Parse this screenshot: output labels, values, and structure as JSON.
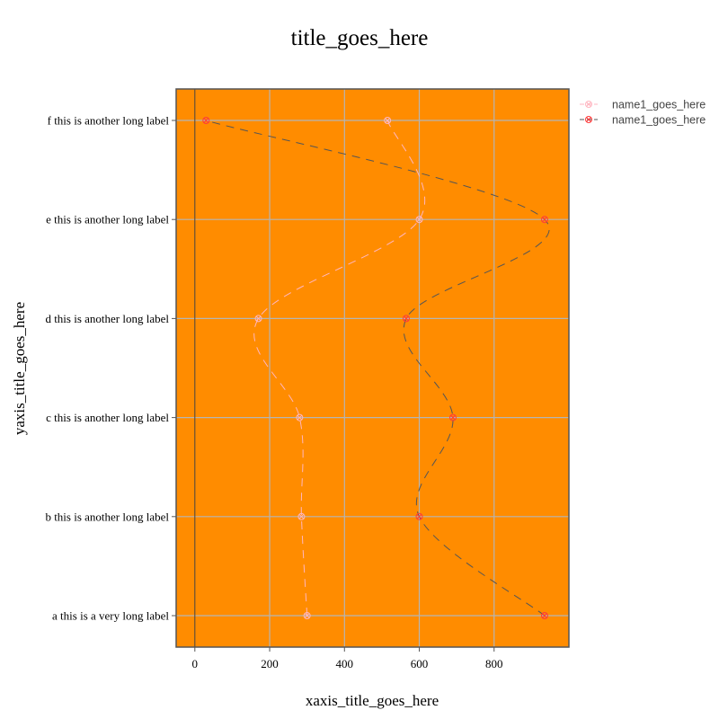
{
  "chart_data": {
    "type": "line",
    "title": "title_goes_here",
    "xlabel": "xaxis_title_goes_here",
    "ylabel": "yaxis_title_goes_here",
    "categories": [
      "a this is a very long label",
      "b this is another long label",
      "c this is another long label",
      "d this is another long label",
      "e this is another long label",
      "f this is another long label"
    ],
    "xlim": [
      -50,
      1000
    ],
    "xticks": [
      0,
      200,
      400,
      600,
      800
    ],
    "grid": true,
    "legend_position": "top-right",
    "plot_background": "#ff8c00",
    "series": [
      {
        "name": "name1_goes_here",
        "color": "#ffb6c1",
        "line_style": "dashed",
        "marker": "circle-open-cross",
        "values": [
          300,
          285,
          280,
          170,
          600,
          515
        ]
      },
      {
        "name": "name1_goes_here",
        "color": "#555555",
        "marker_color": "#ff3b3b",
        "line_style": "dashed",
        "marker": "circle-open-cross",
        "values": [
          935,
          600,
          690,
          565,
          935,
          30
        ]
      }
    ]
  }
}
